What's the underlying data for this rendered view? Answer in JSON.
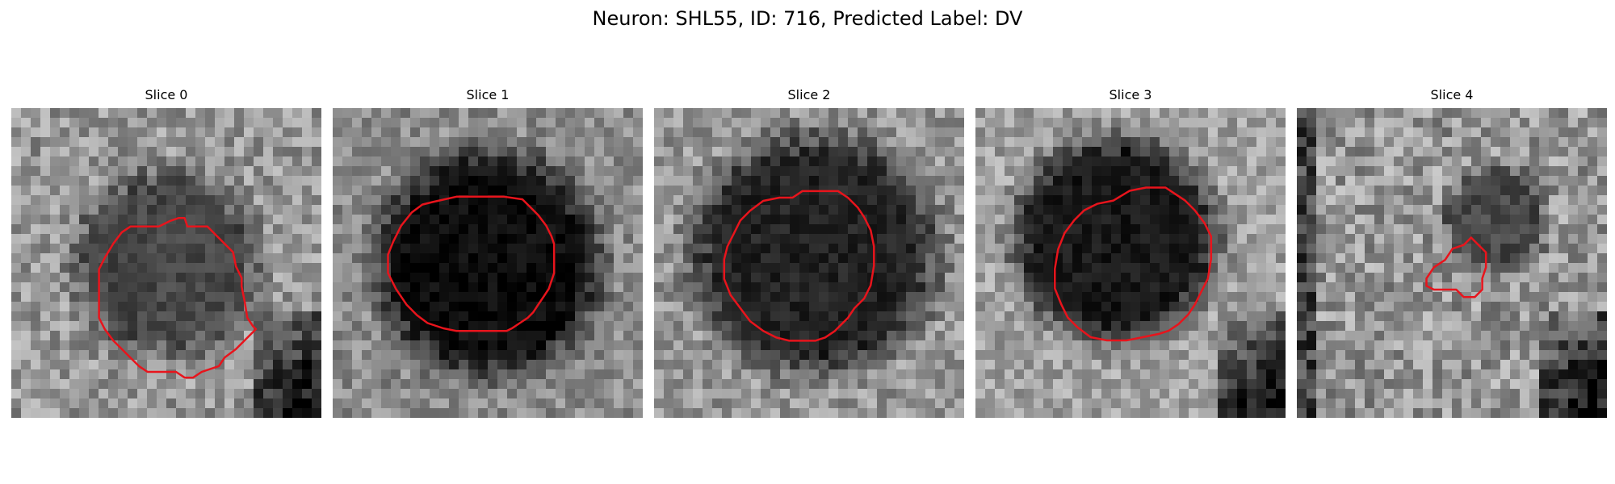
{
  "figure": {
    "title": "Neuron: SHL55, ID: 716, Predicted Label: DV"
  },
  "slices": [
    {
      "label": "Slice 0"
    },
    {
      "label": "Slice 1"
    },
    {
      "label": "Slice 2"
    },
    {
      "label": "Slice 3"
    },
    {
      "label": "Slice 4"
    }
  ],
  "colors": {
    "contour": "#e8141c",
    "background": "#ffffff"
  }
}
